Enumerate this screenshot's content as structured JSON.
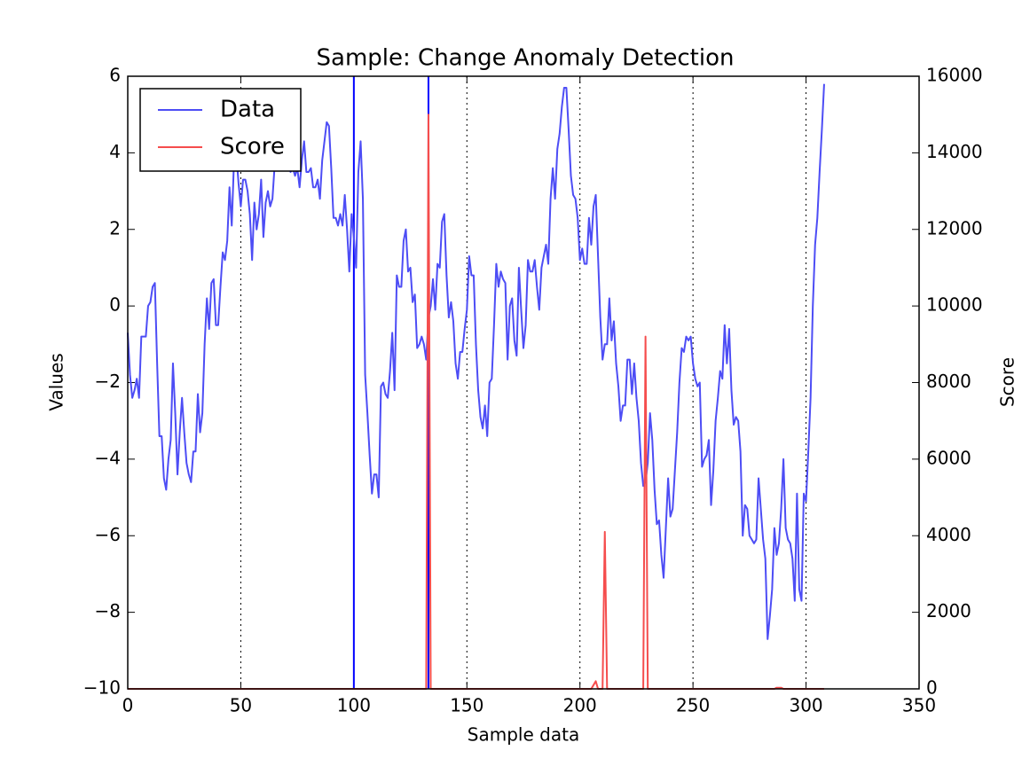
{
  "chart_data": {
    "type": "line",
    "title": "Sample: Change Anomaly Detection",
    "xlabel": "Sample data",
    "ylabel": "Values",
    "y2label": "Score",
    "x": [
      0,
      1,
      2,
      3,
      4,
      5,
      6,
      7,
      8,
      9,
      10,
      11,
      12,
      13,
      14,
      15,
      16,
      17,
      18,
      19,
      20,
      21,
      22,
      23,
      24,
      25,
      26,
      27,
      28,
      29,
      30,
      31,
      32,
      33,
      34,
      35,
      36,
      37,
      38,
      39,
      40,
      41,
      42,
      43,
      44,
      45,
      46,
      47,
      48,
      49,
      50,
      51,
      52,
      53,
      54,
      55,
      56,
      57,
      58,
      59,
      60,
      61,
      62,
      63,
      64,
      65,
      66,
      67,
      68,
      69,
      70,
      71,
      72,
      73,
      74,
      75,
      76,
      77,
      78,
      79,
      80,
      81,
      82,
      83,
      84,
      85,
      86,
      87,
      88,
      89,
      90,
      91,
      92,
      93,
      94,
      95,
      96,
      97,
      98,
      99,
      100,
      101,
      102,
      103,
      104,
      105,
      106,
      107,
      108,
      109,
      110,
      111,
      112,
      113,
      114,
      115,
      116,
      117,
      118,
      119,
      120,
      121,
      122,
      123,
      124,
      125,
      126,
      127,
      128,
      129,
      130,
      131,
      132,
      133,
      134,
      135,
      136,
      137,
      138,
      139,
      140,
      141,
      142,
      143,
      144,
      145,
      146,
      147,
      148,
      149,
      150,
      151,
      152,
      153,
      154,
      155,
      156,
      157,
      158,
      159,
      160,
      161,
      162,
      163,
      164,
      165,
      166,
      167,
      168,
      169,
      170,
      171,
      172,
      173,
      174,
      175,
      176,
      177,
      178,
      179,
      180,
      181,
      182,
      183,
      184,
      185,
      186,
      187,
      188,
      189,
      190,
      191,
      192,
      193,
      194,
      195,
      196,
      197,
      198,
      199,
      200,
      201,
      202,
      203,
      204,
      205,
      206,
      207,
      208,
      209,
      210,
      211,
      212,
      213,
      214,
      215,
      216,
      217,
      218,
      219,
      220,
      221,
      222,
      223,
      224,
      225,
      226,
      227,
      228,
      229,
      230,
      231,
      232,
      233,
      234,
      235,
      236,
      237,
      238,
      239,
      240,
      241,
      242,
      243,
      244,
      245,
      246,
      247,
      248,
      249,
      250,
      251,
      252,
      253,
      254,
      255,
      256,
      257,
      258,
      259,
      260,
      261,
      262,
      263,
      264,
      265,
      266,
      267,
      268,
      269,
      270,
      271,
      272,
      273,
      274,
      275,
      276,
      277,
      278,
      279,
      280,
      281,
      282,
      283,
      284,
      285,
      286,
      287,
      288,
      289,
      290,
      291,
      292,
      293,
      294,
      295,
      296,
      297,
      298,
      299,
      300,
      301,
      302,
      303,
      304,
      305,
      306,
      307,
      308
    ],
    "series": [
      {
        "name": "Data",
        "color": "#4d4df5",
        "values": [
          -0.7,
          -1.8,
          -2.4,
          -2.2,
          -1.9,
          -2.4,
          -0.8,
          -0.8,
          -0.8,
          0,
          0.1,
          0.5,
          0.6,
          -1.5,
          -3.4,
          -3.4,
          -4.5,
          -4.8,
          -4,
          -3.5,
          -1.5,
          -2.8,
          -4.4,
          -3.3,
          -2.4,
          -3.3,
          -4.1,
          -4.4,
          -4.6,
          -3.8,
          -3.8,
          -2.3,
          -3.3,
          -2.8,
          -1,
          0.2,
          -0.6,
          0.6,
          0.7,
          -0.5,
          -0.5,
          0.5,
          1.4,
          1.2,
          1.7,
          3.1,
          2.1,
          3.8,
          4,
          3.2,
          2.6,
          3.3,
          3.3,
          3,
          2.4,
          1.2,
          2.7,
          2,
          2.4,
          3.3,
          1.8,
          2.7,
          3,
          2.6,
          2.8,
          3.7,
          4.5,
          3.8,
          4.1,
          3.6,
          3.9,
          3.7,
          3.5,
          3.6,
          3.4,
          3.6,
          3.1,
          3.8,
          4.3,
          3.5,
          3.5,
          3.6,
          3.1,
          3.1,
          3.3,
          2.8,
          3.8,
          4.3,
          4.8,
          4.7,
          3.6,
          2.3,
          2.3,
          2.1,
          2.4,
          2.1,
          2.9,
          2,
          0.9,
          2.4,
          1.8,
          1,
          3.5,
          4.3,
          2.8,
          -1.8,
          -2.8,
          -3.9,
          -4.9,
          -4.4,
          -4.4,
          -5,
          -2.1,
          -2,
          -2.3,
          -2.4,
          -1.7,
          -0.7,
          -2.2,
          0.8,
          0.5,
          0.5,
          1.7,
          2,
          0.9,
          1,
          0.1,
          0.3,
          -1.1,
          -1,
          -0.8,
          -1,
          -1.4,
          -0.3,
          0,
          0.7,
          -0.1,
          1.1,
          1,
          2.2,
          2.4,
          0.8,
          -0.3,
          0.1,
          -0.4,
          -1.5,
          -1.9,
          -1.2,
          -1.2,
          -0.6,
          -0.1,
          1.3,
          0.8,
          0.8,
          -1,
          -2.2,
          -2.9,
          -3.2,
          -2.6,
          -3.4,
          -2,
          -1.9,
          -0.5,
          1.1,
          0.5,
          0.9,
          0.7,
          0.6,
          -1.4,
          0,
          0.2,
          -0.9,
          -1.3,
          1,
          -0.1,
          -1.1,
          -0.5,
          1.2,
          0.9,
          0.9,
          1.2,
          0.5,
          -0.1,
          1,
          1.3,
          1.6,
          1.1,
          2.8,
          3.6,
          2.8,
          4.1,
          4.5,
          5.2,
          5.7,
          5.7,
          4.6,
          3.4,
          2.9,
          2.8,
          2.3,
          1.2,
          1.5,
          1.1,
          1.1,
          2.3,
          1.6,
          2.6,
          2.9,
          1.3,
          -0.3,
          -1.4,
          -1,
          -1,
          0.2,
          -0.9,
          -0.4,
          -1.5,
          -2.1,
          -3,
          -2.6,
          -2.6,
          -1.4,
          -1.4,
          -2.3,
          -1.5,
          -2.4,
          -3,
          -4.1,
          -4.7,
          -4.6,
          -4.1,
          -2.8,
          -3.5,
          -4.8,
          -5.7,
          -5.6,
          -6.5,
          -7.1,
          -5.8,
          -4.5,
          -5.5,
          -5.3,
          -4.3,
          -3.3,
          -2,
          -1.1,
          -1.2,
          -0.8,
          -0.9,
          -0.8,
          -1.5,
          -1.9,
          -2.1,
          -2,
          -4.2,
          -4,
          -3.9,
          -3.5,
          -5.2,
          -4.3,
          -3,
          -2.4,
          -1.7,
          -1.9,
          -0.5,
          -1.5,
          -0.6,
          -2.2,
          -3.1,
          -2.9,
          -3,
          -3.8,
          -6,
          -5.2,
          -5.3,
          -6,
          -6.1,
          -6.2,
          -6.1,
          -4.5,
          -5.3,
          -6.1,
          -6.6,
          -8.7,
          -8.1,
          -7.4,
          -5.8,
          -6.5,
          -6.2,
          -5.3,
          -4,
          -5.8,
          -6.1,
          -6.2,
          -6.6,
          -7.7,
          -4.9,
          -7.4,
          -7.7,
          -4.9,
          -5.1,
          -3.8,
          -2.4,
          0,
          1.6,
          2.3,
          3.5,
          4.6,
          5.8
        ]
      },
      {
        "name": "Score",
        "color": "#f54d4d",
        "axis": "y2",
        "values": [
          0,
          0,
          0,
          0,
          0,
          0,
          0,
          0,
          0,
          0,
          0,
          0,
          0,
          0,
          0,
          0,
          0,
          0,
          0,
          0,
          0,
          0,
          0,
          0,
          0,
          0,
          0,
          0,
          0,
          0,
          0,
          0,
          0,
          0,
          0,
          0,
          0,
          0,
          0,
          0,
          0,
          0,
          0,
          0,
          0,
          0,
          0,
          0,
          0,
          0,
          0,
          0,
          0,
          0,
          0,
          0,
          0,
          0,
          0,
          0,
          0,
          0,
          0,
          0,
          0,
          0,
          0,
          0,
          0,
          0,
          0,
          0,
          0,
          0,
          0,
          0,
          0,
          0,
          0,
          0,
          0,
          0,
          0,
          0,
          0,
          0,
          0,
          0,
          0,
          0,
          0,
          0,
          0,
          0,
          0,
          0,
          0,
          0,
          0,
          0,
          0,
          0,
          0,
          0,
          0,
          0,
          0,
          0,
          0,
          0,
          0,
          0,
          0,
          0,
          0,
          0,
          0,
          0,
          0,
          0,
          0,
          0,
          0,
          0,
          0,
          0,
          0,
          0,
          0,
          0,
          0,
          0,
          0,
          15000,
          0,
          0,
          0,
          0,
          0,
          0,
          0,
          0,
          0,
          0,
          0,
          0,
          0,
          0,
          0,
          0,
          0,
          0,
          0,
          0,
          0,
          0,
          0,
          0,
          0,
          0,
          0,
          0,
          0,
          0,
          0,
          0,
          0,
          0,
          0,
          0,
          0,
          0,
          0,
          0,
          0,
          0,
          0,
          0,
          0,
          0,
          0,
          0,
          0,
          0,
          0,
          0,
          0,
          0,
          0,
          0,
          0,
          0,
          0,
          0,
          0,
          0,
          0,
          0,
          0,
          0,
          0,
          0,
          0,
          0,
          0,
          0,
          100,
          200,
          0,
          0,
          0,
          4100,
          0,
          0,
          0,
          0,
          0,
          0,
          0,
          0,
          0,
          0,
          0,
          0,
          0,
          0,
          0,
          0,
          0,
          9200,
          0,
          0,
          0,
          0,
          0,
          0,
          0,
          0,
          0,
          0,
          0,
          0,
          0,
          0,
          0,
          0,
          0,
          0,
          0,
          0,
          0,
          0,
          0,
          0,
          0,
          0,
          0,
          0,
          0,
          0,
          0,
          0,
          0,
          0,
          0,
          0,
          0,
          0,
          0,
          0,
          0,
          0,
          0,
          0,
          0,
          0,
          0,
          0,
          0,
          0,
          0,
          0,
          0,
          0,
          0,
          0,
          0,
          30,
          30,
          30,
          0,
          0,
          0,
          0,
          0,
          0,
          0,
          0,
          0,
          0,
          0,
          0,
          0,
          0,
          0,
          0,
          0,
          0,
          0
        ]
      }
    ],
    "xlim": [
      0,
      350
    ],
    "xticks": [
      0,
      50,
      100,
      150,
      200,
      250,
      300,
      350
    ],
    "ylim": [
      -10,
      6
    ],
    "yticks": [
      {
        "value": -10,
        "label": "−10"
      },
      {
        "value": -8,
        "label": "−8"
      },
      {
        "value": -6,
        "label": "−6"
      },
      {
        "value": -4,
        "label": "−4"
      },
      {
        "value": -2,
        "label": "−2"
      },
      0,
      2,
      4,
      6
    ],
    "y2lim": [
      0,
      16000
    ],
    "y2ticks": [
      0,
      2000,
      4000,
      6000,
      8000,
      10000,
      12000,
      14000,
      16000
    ],
    "xgrid": true,
    "vlines": [
      100,
      133
    ],
    "vline_color": "#0000ff",
    "legend": "upper left"
  }
}
